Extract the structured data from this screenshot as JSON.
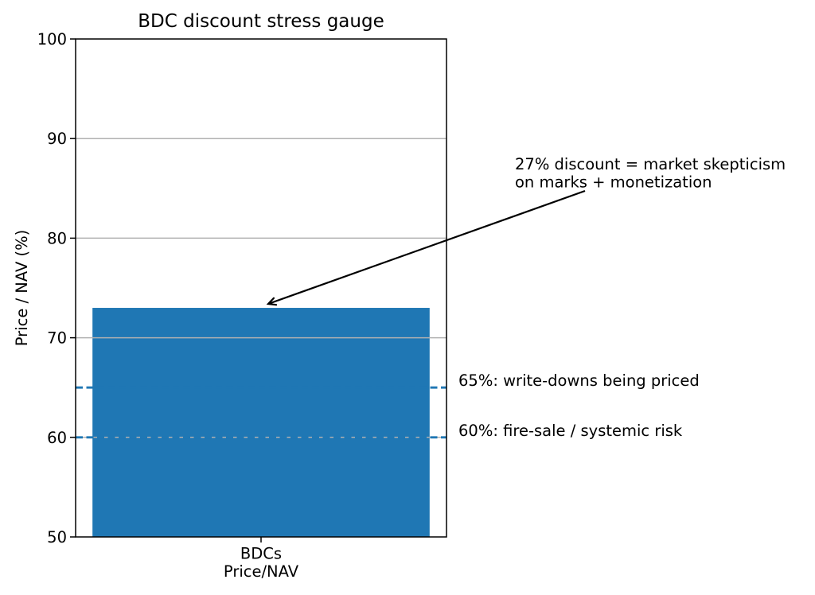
{
  "figure": {
    "background": "#ffffff"
  },
  "chart_data": {
    "type": "bar",
    "title": "BDC discount stress gauge",
    "ylabel": "Price / NAV (%)",
    "xlabel": "",
    "categories": [
      "BDCs\nPrice/NAV"
    ],
    "values": [
      73
    ],
    "ylim": [
      50,
      100
    ],
    "yticks": [
      50,
      60,
      70,
      80,
      90,
      100
    ],
    "legend": "none",
    "grid": "horizontal gridlines at 60/70/80/90, drawn above bar",
    "bar_color": "#1f77b4",
    "grid_color": "#b0b0b0",
    "axis_color": "#000000",
    "thresholds": [
      {
        "value": 65,
        "label": "65%: write-downs being priced",
        "color": "#1f77b4",
        "style": "dashed"
      },
      {
        "value": 60,
        "label": "60%: fire-sale / systemic risk",
        "color": "#1f77b4",
        "style": "dashed"
      }
    ],
    "annotation": {
      "lines": [
        "27% discount = market skepticism",
        "on marks + monetization"
      ],
      "arrow_color": "#000000",
      "target_value": 73
    }
  }
}
